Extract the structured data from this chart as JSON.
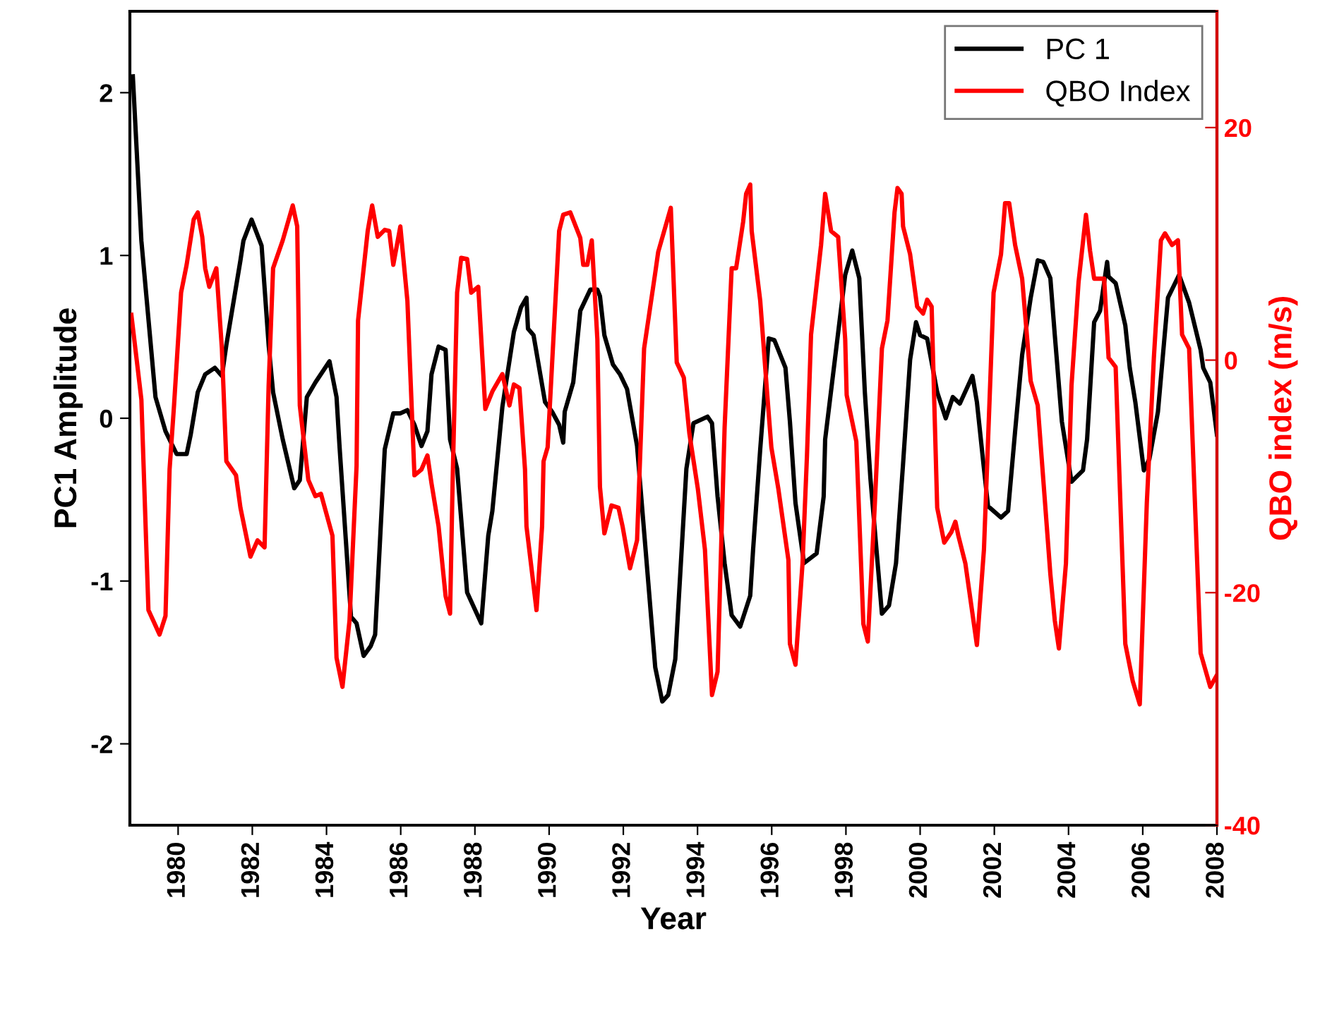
{
  "chart_data": {
    "type": "line",
    "xlabel": "Year",
    "ylabel": "PC1 Amplitude",
    "y2label": "QBO index (m/s)",
    "xlim": [
      1978.7,
      2008
    ],
    "xticks": [
      1980,
      1982,
      1984,
      1986,
      1988,
      1990,
      1992,
      1994,
      1996,
      1998,
      2000,
      2002,
      2004,
      2006,
      2008
    ],
    "ylim": [
      -2.5,
      2.5
    ],
    "yticks": [
      -2,
      -1,
      0,
      1,
      2
    ],
    "y2lim": [
      -40,
      30
    ],
    "y2ticks": [
      -40,
      -20,
      0,
      20
    ],
    "grid": false,
    "legend": "top right",
    "marker": "none",
    "line_style": "solid",
    "series": [
      {
        "name": "PC 1",
        "color": "#000000",
        "x": [
          1978.78,
          1979.01,
          1979.39,
          1979.66,
          1979.96,
          1980.23,
          1980.34,
          1980.53,
          1980.73,
          1980.99,
          1981.18,
          1981.3,
          1981.68,
          1981.76,
          1981.98,
          1982.25,
          1982.44,
          1982.56,
          1982.82,
          1983.13,
          1983.28,
          1983.47,
          1983.7,
          1984.08,
          1984.27,
          1984.35,
          1984.66,
          1984.81,
          1985.0,
          1985.19,
          1985.31,
          1985.57,
          1985.8,
          1985.99,
          1986.18,
          1986.37,
          1986.56,
          1986.72,
          1986.83,
          1987.02,
          1987.21,
          1987.33,
          1987.52,
          1987.79,
          1988.17,
          1988.36,
          1988.47,
          1988.74,
          1989.05,
          1989.24,
          1989.39,
          1989.43,
          1989.58,
          1989.89,
          1990.08,
          1990.27,
          1990.38,
          1990.42,
          1990.65,
          1990.84,
          1991.11,
          1991.3,
          1991.37,
          1991.49,
          1991.72,
          1991.91,
          1992.1,
          1992.37,
          1992.63,
          1992.86,
          1993.05,
          1993.21,
          1993.4,
          1993.7,
          1993.89,
          1994.27,
          1994.39,
          1994.54,
          1994.73,
          1994.92,
          1995.15,
          1995.42,
          1995.5,
          1995.69,
          1995.92,
          1996.07,
          1996.37,
          1996.49,
          1996.64,
          1996.87,
          1997.21,
          1997.4,
          1997.44,
          1997.98,
          1998.17,
          1998.36,
          1998.51,
          1998.66,
          1998.97,
          1999.16,
          1999.35,
          1999.54,
          1999.73,
          1999.89,
          2000.0,
          2000.19,
          2000.46,
          2000.69,
          2000.88,
          2001.07,
          2001.41,
          2001.53,
          2001.72,
          2001.83,
          2002.18,
          2002.37,
          2002.56,
          2002.75,
          2002.98,
          2003.17,
          2003.32,
          2003.51,
          2003.63,
          2003.82,
          2004.08,
          2004.39,
          2004.5,
          2004.69,
          2004.85,
          2005.04,
          2005.08,
          2005.27,
          2005.53,
          2005.65,
          2005.8,
          2006.03,
          2006.18,
          2006.41,
          2006.68,
          2006.98,
          2007.25,
          2007.56,
          2007.63,
          2007.82,
          2008.0
        ],
        "values": [
          2.1,
          1.09,
          0.13,
          -0.08,
          -0.22,
          -0.22,
          -0.1,
          0.16,
          0.27,
          0.31,
          0.26,
          0.45,
          0.97,
          1.09,
          1.22,
          1.06,
          0.45,
          0.16,
          -0.13,
          -0.43,
          -0.38,
          0.13,
          0.22,
          0.35,
          0.13,
          -0.17,
          -1.22,
          -1.26,
          -1.46,
          -1.4,
          -1.33,
          -0.19,
          0.03,
          0.03,
          0.05,
          -0.04,
          -0.17,
          -0.08,
          0.27,
          0.44,
          0.42,
          -0.13,
          -0.31,
          -1.07,
          -1.26,
          -0.72,
          -0.57,
          0.07,
          0.53,
          0.68,
          0.74,
          0.55,
          0.51,
          0.1,
          0.04,
          -0.04,
          -0.15,
          0.04,
          0.22,
          0.66,
          0.79,
          0.79,
          0.75,
          0.51,
          0.33,
          0.27,
          0.18,
          -0.17,
          -0.89,
          -1.53,
          -1.74,
          -1.7,
          -1.48,
          -0.31,
          -0.03,
          0.01,
          -0.03,
          -0.48,
          -0.89,
          -1.21,
          -1.28,
          -1.09,
          -0.8,
          -0.19,
          0.49,
          0.48,
          0.31,
          -0.02,
          -0.52,
          -0.89,
          -0.83,
          -0.48,
          -0.13,
          0.88,
          1.03,
          0.86,
          0.16,
          -0.37,
          -1.2,
          -1.15,
          -0.89,
          -0.28,
          0.36,
          0.59,
          0.51,
          0.49,
          0.16,
          0.0,
          0.13,
          0.09,
          0.26,
          0.1,
          -0.31,
          -0.54,
          -0.61,
          -0.57,
          -0.08,
          0.39,
          0.74,
          0.97,
          0.96,
          0.86,
          0.51,
          -0.02,
          -0.39,
          -0.32,
          -0.13,
          0.59,
          0.66,
          0.96,
          0.87,
          0.83,
          0.57,
          0.31,
          0.1,
          -0.32,
          -0.25,
          0.04,
          0.74,
          0.88,
          0.71,
          0.42,
          0.31,
          0.22,
          -0.1
        ]
      },
      {
        "name": "QBO Index",
        "color": "#ff0000",
        "axis": "y2",
        "x": [
          1978.74,
          1979.01,
          1979.2,
          1979.5,
          1979.66,
          1979.77,
          1979.89,
          1980.08,
          1980.23,
          1980.42,
          1980.53,
          1980.65,
          1980.73,
          1980.84,
          1981.03,
          1981.18,
          1981.3,
          1981.56,
          1981.68,
          1981.95,
          1982.14,
          1982.33,
          1982.44,
          1982.56,
          1982.82,
          1983.09,
          1983.21,
          1983.28,
          1983.51,
          1983.7,
          1983.85,
          1984.16,
          1984.27,
          1984.43,
          1984.62,
          1984.81,
          1984.85,
          1985.11,
          1985.23,
          1985.38,
          1985.57,
          1985.69,
          1985.8,
          1985.99,
          1986.18,
          1986.37,
          1986.56,
          1986.72,
          1986.83,
          1987.02,
          1987.21,
          1987.33,
          1987.4,
          1987.52,
          1987.63,
          1987.79,
          1987.9,
          1988.09,
          1988.28,
          1988.47,
          1988.74,
          1988.93,
          1989.05,
          1989.2,
          1989.35,
          1989.39,
          1989.66,
          1989.81,
          1989.85,
          1989.96,
          1990.27,
          1990.38,
          1990.57,
          1990.84,
          1990.92,
          1991.03,
          1991.15,
          1991.3,
          1991.37,
          1991.49,
          1991.68,
          1991.87,
          1991.98,
          1992.18,
          1992.37,
          1992.56,
          1992.86,
          1992.94,
          1993.28,
          1993.44,
          1993.63,
          1993.78,
          1994.01,
          1994.2,
          1994.39,
          1994.54,
          1994.73,
          1994.92,
          1995.04,
          1995.23,
          1995.31,
          1995.42,
          1995.46,
          1995.69,
          1995.88,
          1995.99,
          1996.18,
          1996.45,
          1996.49,
          1996.64,
          1996.83,
          1996.95,
          1997.06,
          1997.33,
          1997.44,
          1997.6,
          1997.79,
          1997.98,
          1998.02,
          1998.28,
          1998.47,
          1998.59,
          1998.78,
          1998.97,
          1999.12,
          1999.31,
          1999.39,
          1999.5,
          1999.54,
          1999.73,
          1999.92,
          2000.08,
          2000.19,
          2000.31,
          2000.46,
          2000.65,
          2000.84,
          2000.95,
          2001.03,
          2001.22,
          2001.53,
          2001.72,
          2001.98,
          2002.18,
          2002.29,
          2002.4,
          2002.56,
          2002.75,
          2002.98,
          2003.17,
          2003.51,
          2003.63,
          2003.74,
          2003.93,
          2004.08,
          2004.27,
          2004.47,
          2004.58,
          2004.69,
          2004.96,
          2005.08,
          2005.27,
          2005.53,
          2005.73,
          2005.92,
          2006.11,
          2006.3,
          2006.49,
          2006.6,
          2006.79,
          2006.95,
          2007.06,
          2007.25,
          2007.56,
          2007.82,
          2007.98
        ],
        "values": [
          3.9,
          -3.4,
          -21.5,
          -23.6,
          -22.0,
          -9.4,
          -3.9,
          5.8,
          8.2,
          12.1,
          12.7,
          10.6,
          7.9,
          6.3,
          7.9,
          1.0,
          -8.7,
          -9.9,
          -12.7,
          -16.9,
          -15.5,
          -16.1,
          -2.2,
          7.9,
          10.3,
          13.3,
          11.5,
          -3.9,
          -10.3,
          -11.7,
          -11.5,
          -15.1,
          -25.6,
          -28.1,
          -22.4,
          -9.1,
          3.4,
          11.1,
          13.3,
          10.6,
          11.2,
          11.1,
          8.2,
          11.5,
          5.1,
          -9.9,
          -9.4,
          -8.2,
          -10.6,
          -14.3,
          -20.3,
          -21.8,
          -10.3,
          5.8,
          8.8,
          8.7,
          5.8,
          6.3,
          -4.2,
          -2.7,
          -1.2,
          -3.9,
          -2.1,
          -2.4,
          -9.4,
          -14.3,
          -21.5,
          -14.3,
          -8.7,
          -7.5,
          11.1,
          12.5,
          12.7,
          10.5,
          8.2,
          8.2,
          10.3,
          1.8,
          -10.9,
          -14.9,
          -12.5,
          -12.7,
          -14.3,
          -17.9,
          -15.5,
          1.0,
          7.5,
          9.3,
          13.1,
          -0.2,
          -1.5,
          -6.3,
          -11.1,
          -16.3,
          -28.8,
          -26.8,
          -5.8,
          7.9,
          7.9,
          11.9,
          14.3,
          15.1,
          11.1,
          5.1,
          -3.0,
          -7.5,
          -11.1,
          -17.2,
          -24.4,
          -26.2,
          -17.5,
          -8.2,
          2.2,
          9.9,
          14.3,
          11.1,
          10.6,
          1.8,
          -3.0,
          -7.0,
          -22.7,
          -24.2,
          -12.3,
          1.0,
          3.4,
          12.7,
          14.8,
          14.3,
          11.5,
          9.1,
          4.6,
          4.0,
          5.2,
          4.6,
          -12.7,
          -15.7,
          -14.8,
          -13.9,
          -15.1,
          -17.5,
          -24.5,
          -16.3,
          5.8,
          9.1,
          13.5,
          13.5,
          9.9,
          7.0,
          -1.8,
          -3.9,
          -18.4,
          -22.4,
          -24.8,
          -17.5,
          -2.2,
          6.7,
          12.5,
          9.4,
          7.0,
          7.0,
          0.2,
          -0.6,
          -24.4,
          -27.6,
          -29.6,
          -12.3,
          0.2,
          10.3,
          10.9,
          9.9,
          10.3,
          2.2,
          1.0,
          -25.2,
          -28.1,
          -27.2
        ]
      }
    ]
  }
}
